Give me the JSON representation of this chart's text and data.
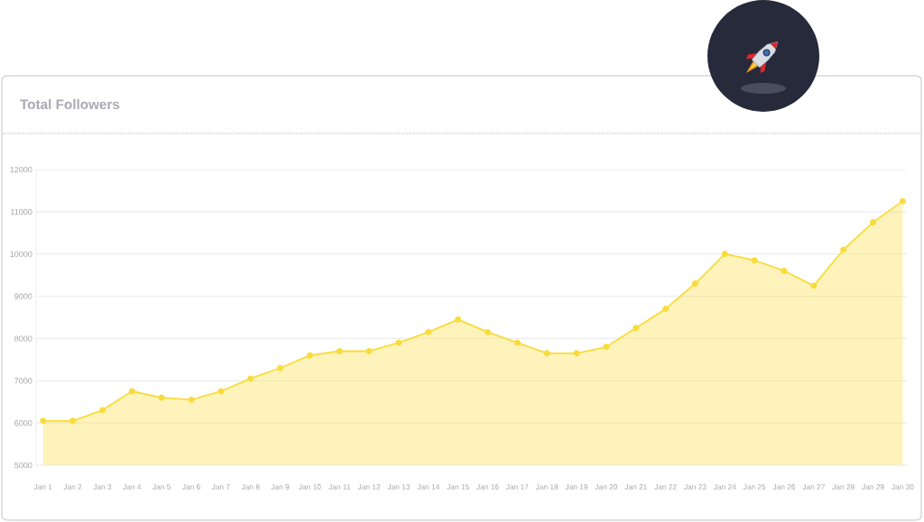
{
  "chart_data": {
    "type": "area",
    "title": "Total Followers",
    "categories": [
      "Jan 1",
      "Jan 2",
      "Jan 3",
      "Jan 4",
      "Jan 5",
      "Jan 6",
      "Jan 7",
      "Jan 8",
      "Jan 9",
      "Jan 10",
      "Jan 11",
      "Jan 12",
      "Jan 13",
      "Jan 14",
      "Jan 15",
      "Jan 16",
      "Jan 17",
      "Jan 18",
      "Jan 19",
      "Jan 20",
      "Jan 21",
      "Jan 22",
      "Jan 23",
      "Jan 24",
      "Jan 25",
      "Jan 26",
      "Jan 27",
      "Jan 28",
      "Jan 29",
      "Jan 30"
    ],
    "values": [
      6050,
      6050,
      6300,
      6750,
      6600,
      6550,
      6750,
      7050,
      7300,
      7600,
      7700,
      7700,
      7900,
      8150,
      8450,
      8150,
      7900,
      7650,
      7650,
      7800,
      8250,
      8700,
      9300,
      10000,
      9850,
      9600,
      9250,
      10100,
      10750,
      11250
    ],
    "color": "#f8dc3c",
    "ylim": [
      5000,
      12000
    ],
    "yticks": [
      5000,
      6000,
      7000,
      8000,
      9000,
      10000,
      11000,
      12000
    ],
    "grid": "y",
    "marker": "circle",
    "line_style": "solid"
  }
}
